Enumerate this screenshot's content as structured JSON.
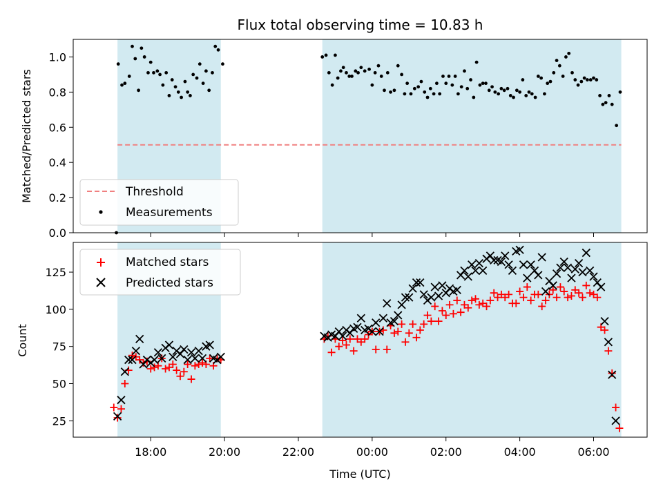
{
  "chart_data": {
    "type": "scatter",
    "title": "Flux total observing time = 10.83 h",
    "xlabel": "Time (UTC)",
    "x_ticks": [
      "18:00",
      "20:00",
      "22:00",
      "00:00",
      "02:00",
      "04:00",
      "06:00"
    ],
    "x_tick_hours": [
      18,
      20,
      22,
      24,
      26,
      28,
      30
    ],
    "xlim_hours": [
      15.9,
      31.45
    ],
    "shaded_intervals_hours": [
      [
        17.1,
        19.9
      ],
      [
        22.65,
        30.75
      ]
    ],
    "colors": {
      "shade": "#add8e6",
      "threshold": "#f08080",
      "matched": "#ff0000",
      "predicted": "#000000",
      "measurements": "#000000"
    },
    "panels": [
      {
        "id": "ratio",
        "ylabel": "Matched/Predicted stars",
        "ylim": [
          0,
          1.1
        ],
        "y_ticks": [
          0.0,
          0.2,
          0.4,
          0.6,
          0.8,
          1.0
        ],
        "legend_position": "lower-left",
        "threshold": {
          "name": "Threshold",
          "value": 0.5,
          "x_range_hours": [
            17.1,
            30.75
          ]
        },
        "measurements_name": "Measurements"
      },
      {
        "id": "count",
        "ylabel": "Count",
        "ylim": [
          14,
          145
        ],
        "y_ticks": [
          25,
          50,
          75,
          100,
          125
        ],
        "legend_position": "upper-left",
        "series_names": [
          "Matched stars",
          "Predicted stars"
        ]
      }
    ],
    "measurements": [
      [
        17.07,
        0.0
      ],
      [
        17.12,
        0.96
      ],
      [
        17.22,
        0.84
      ],
      [
        17.3,
        0.85
      ],
      [
        17.42,
        0.89
      ],
      [
        17.5,
        1.06
      ],
      [
        17.58,
        0.99
      ],
      [
        17.67,
        0.81
      ],
      [
        17.75,
        1.05
      ],
      [
        17.83,
        1.0
      ],
      [
        17.93,
        0.91
      ],
      [
        18.0,
        0.97
      ],
      [
        18.08,
        0.91
      ],
      [
        18.18,
        0.92
      ],
      [
        18.25,
        0.9
      ],
      [
        18.33,
        0.84
      ],
      [
        18.42,
        0.91
      ],
      [
        18.5,
        0.78
      ],
      [
        18.58,
        0.87
      ],
      [
        18.67,
        0.83
      ],
      [
        18.75,
        0.8
      ],
      [
        18.83,
        0.77
      ],
      [
        18.93,
        0.86
      ],
      [
        19.0,
        0.8
      ],
      [
        19.07,
        0.78
      ],
      [
        19.15,
        0.9
      ],
      [
        19.25,
        0.88
      ],
      [
        19.33,
        0.96
      ],
      [
        19.42,
        0.85
      ],
      [
        19.5,
        0.92
      ],
      [
        19.58,
        0.81
      ],
      [
        19.67,
        0.91
      ],
      [
        19.75,
        1.06
      ],
      [
        19.83,
        1.04
      ],
      [
        19.95,
        0.96
      ],
      [
        22.65,
        1.0
      ],
      [
        22.75,
        1.01
      ],
      [
        22.83,
        0.91
      ],
      [
        22.92,
        0.84
      ],
      [
        23.0,
        1.01
      ],
      [
        23.07,
        0.88
      ],
      [
        23.15,
        0.92
      ],
      [
        23.22,
        0.94
      ],
      [
        23.3,
        0.91
      ],
      [
        23.38,
        0.89
      ],
      [
        23.45,
        0.89
      ],
      [
        23.55,
        0.92
      ],
      [
        23.62,
        0.91
      ],
      [
        23.7,
        0.94
      ],
      [
        23.8,
        0.92
      ],
      [
        23.92,
        0.93
      ],
      [
        24.0,
        0.84
      ],
      [
        24.08,
        0.91
      ],
      [
        24.17,
        0.95
      ],
      [
        24.25,
        0.89
      ],
      [
        24.33,
        0.81
      ],
      [
        24.42,
        0.91
      ],
      [
        24.5,
        0.8
      ],
      [
        24.6,
        0.81
      ],
      [
        24.7,
        0.95
      ],
      [
        24.8,
        0.9
      ],
      [
        24.88,
        0.79
      ],
      [
        24.95,
        0.85
      ],
      [
        25.05,
        0.79
      ],
      [
        25.15,
        0.82
      ],
      [
        25.25,
        0.83
      ],
      [
        25.33,
        0.86
      ],
      [
        25.42,
        0.8
      ],
      [
        25.5,
        0.77
      ],
      [
        25.58,
        0.82
      ],
      [
        25.67,
        0.79
      ],
      [
        25.75,
        0.85
      ],
      [
        25.83,
        0.79
      ],
      [
        25.92,
        0.89
      ],
      [
        26.0,
        0.85
      ],
      [
        26.08,
        0.89
      ],
      [
        26.17,
        0.84
      ],
      [
        26.25,
        0.89
      ],
      [
        26.33,
        0.79
      ],
      [
        26.42,
        0.83
      ],
      [
        26.5,
        0.92
      ],
      [
        26.58,
        0.82
      ],
      [
        26.67,
        0.87
      ],
      [
        26.75,
        0.77
      ],
      [
        26.83,
        0.97
      ],
      [
        26.92,
        0.84
      ],
      [
        27.0,
        0.85
      ],
      [
        27.08,
        0.85
      ],
      [
        27.17,
        0.81
      ],
      [
        27.25,
        0.83
      ],
      [
        27.33,
        0.8
      ],
      [
        27.42,
        0.79
      ],
      [
        27.5,
        0.82
      ],
      [
        27.58,
        0.81
      ],
      [
        27.67,
        0.82
      ],
      [
        27.75,
        0.78
      ],
      [
        27.83,
        0.77
      ],
      [
        27.92,
        0.81
      ],
      [
        28.0,
        0.8
      ],
      [
        28.08,
        0.87
      ],
      [
        28.17,
        0.78
      ],
      [
        28.25,
        0.8
      ],
      [
        28.33,
        0.79
      ],
      [
        28.42,
        0.77
      ],
      [
        28.5,
        0.89
      ],
      [
        28.58,
        0.88
      ],
      [
        28.67,
        0.79
      ],
      [
        28.75,
        0.85
      ],
      [
        28.83,
        0.86
      ],
      [
        28.92,
        0.91
      ],
      [
        29.0,
        0.98
      ],
      [
        29.08,
        0.95
      ],
      [
        29.17,
        0.89
      ],
      [
        29.25,
        1.0
      ],
      [
        29.33,
        1.02
      ],
      [
        29.42,
        0.91
      ],
      [
        29.5,
        0.87
      ],
      [
        29.58,
        0.84
      ],
      [
        29.67,
        0.86
      ],
      [
        29.75,
        0.88
      ],
      [
        29.83,
        0.87
      ],
      [
        29.92,
        0.87
      ],
      [
        30.0,
        0.88
      ],
      [
        30.08,
        0.87
      ],
      [
        30.17,
        0.78
      ],
      [
        30.25,
        0.73
      ],
      [
        30.33,
        0.74
      ],
      [
        30.42,
        0.78
      ],
      [
        30.5,
        0.73
      ],
      [
        30.62,
        0.61
      ],
      [
        30.72,
        0.8
      ]
    ],
    "matched_stars": [
      [
        17.0,
        34
      ],
      [
        17.1,
        27
      ],
      [
        17.2,
        33
      ],
      [
        17.3,
        50
      ],
      [
        17.4,
        59
      ],
      [
        17.5,
        69
      ],
      [
        17.6,
        68
      ],
      [
        17.7,
        66
      ],
      [
        17.8,
        64
      ],
      [
        17.9,
        65
      ],
      [
        18.0,
        60
      ],
      [
        18.1,
        61
      ],
      [
        18.2,
        62
      ],
      [
        18.3,
        67
      ],
      [
        18.4,
        60
      ],
      [
        18.5,
        61
      ],
      [
        18.6,
        63
      ],
      [
        18.7,
        59
      ],
      [
        18.8,
        55
      ],
      [
        18.9,
        58
      ],
      [
        19.0,
        63
      ],
      [
        19.1,
        53
      ],
      [
        19.2,
        62
      ],
      [
        19.3,
        63
      ],
      [
        19.4,
        64
      ],
      [
        19.5,
        63
      ],
      [
        19.6,
        67
      ],
      [
        19.7,
        62
      ],
      [
        19.8,
        67
      ],
      [
        19.9,
        66
      ],
      [
        22.7,
        80
      ],
      [
        22.8,
        82
      ],
      [
        22.9,
        71
      ],
      [
        23.0,
        80
      ],
      [
        23.1,
        75
      ],
      [
        23.2,
        79
      ],
      [
        23.3,
        76
      ],
      [
        23.4,
        80
      ],
      [
        23.5,
        72
      ],
      [
        23.6,
        80
      ],
      [
        23.7,
        78
      ],
      [
        23.8,
        80
      ],
      [
        23.9,
        83
      ],
      [
        24.0,
        85
      ],
      [
        24.1,
        73
      ],
      [
        24.2,
        85
      ],
      [
        24.3,
        86
      ],
      [
        24.4,
        73
      ],
      [
        24.5,
        89
      ],
      [
        24.6,
        84
      ],
      [
        24.7,
        85
      ],
      [
        24.8,
        90
      ],
      [
        24.9,
        78
      ],
      [
        25.0,
        84
      ],
      [
        25.1,
        90
      ],
      [
        25.2,
        81
      ],
      [
        25.3,
        86
      ],
      [
        25.4,
        90
      ],
      [
        25.5,
        96
      ],
      [
        25.6,
        92
      ],
      [
        25.7,
        102
      ],
      [
        25.8,
        92
      ],
      [
        25.9,
        99
      ],
      [
        26.0,
        96
      ],
      [
        26.1,
        103
      ],
      [
        26.2,
        97
      ],
      [
        26.3,
        106
      ],
      [
        26.4,
        98
      ],
      [
        26.5,
        103
      ],
      [
        26.6,
        101
      ],
      [
        26.7,
        106
      ],
      [
        26.8,
        107
      ],
      [
        26.9,
        103
      ],
      [
        27.0,
        104
      ],
      [
        27.1,
        102
      ],
      [
        27.2,
        106
      ],
      [
        27.3,
        111
      ],
      [
        27.4,
        108
      ],
      [
        27.5,
        110
      ],
      [
        27.6,
        108
      ],
      [
        27.7,
        110
      ],
      [
        27.8,
        104
      ],
      [
        27.9,
        104
      ],
      [
        28.0,
        112
      ],
      [
        28.1,
        108
      ],
      [
        28.2,
        115
      ],
      [
        28.3,
        106
      ],
      [
        28.4,
        110
      ],
      [
        28.5,
        110
      ],
      [
        28.6,
        102
      ],
      [
        28.7,
        106
      ],
      [
        28.8,
        110
      ],
      [
        28.9,
        113
      ],
      [
        29.0,
        108
      ],
      [
        29.1,
        115
      ],
      [
        29.2,
        112
      ],
      [
        29.3,
        108
      ],
      [
        29.4,
        109
      ],
      [
        29.5,
        113
      ],
      [
        29.6,
        111
      ],
      [
        29.7,
        108
      ],
      [
        29.8,
        116
      ],
      [
        29.9,
        111
      ],
      [
        30.0,
        110
      ],
      [
        30.1,
        108
      ],
      [
        30.2,
        88
      ],
      [
        30.3,
        86
      ],
      [
        30.4,
        72
      ],
      [
        30.5,
        57
      ],
      [
        30.6,
        34
      ],
      [
        30.7,
        20
      ]
    ],
    "predicted_stars": [
      [
        17.1,
        28
      ],
      [
        17.2,
        39
      ],
      [
        17.3,
        58
      ],
      [
        17.4,
        66
      ],
      [
        17.5,
        66
      ],
      [
        17.6,
        72
      ],
      [
        17.7,
        80
      ],
      [
        17.8,
        63
      ],
      [
        17.9,
        66
      ],
      [
        18.0,
        64
      ],
      [
        18.1,
        66
      ],
      [
        18.2,
        71
      ],
      [
        18.3,
        67
      ],
      [
        18.4,
        74
      ],
      [
        18.5,
        76
      ],
      [
        18.6,
        68
      ],
      [
        18.7,
        72
      ],
      [
        18.8,
        70
      ],
      [
        18.9,
        73
      ],
      [
        19.0,
        66
      ],
      [
        19.1,
        71
      ],
      [
        19.2,
        67
      ],
      [
        19.3,
        72
      ],
      [
        19.4,
        67
      ],
      [
        19.5,
        75
      ],
      [
        19.6,
        76
      ],
      [
        19.7,
        67
      ],
      [
        19.8,
        66
      ],
      [
        19.9,
        68
      ],
      [
        22.7,
        82
      ],
      [
        22.8,
        81
      ],
      [
        22.9,
        83
      ],
      [
        23.0,
        82
      ],
      [
        23.1,
        85
      ],
      [
        23.2,
        82
      ],
      [
        23.3,
        86
      ],
      [
        23.4,
        84
      ],
      [
        23.5,
        87
      ],
      [
        23.6,
        88
      ],
      [
        23.7,
        94
      ],
      [
        23.8,
        86
      ],
      [
        23.9,
        87
      ],
      [
        24.0,
        85
      ],
      [
        24.1,
        91
      ],
      [
        24.2,
        85
      ],
      [
        24.3,
        94
      ],
      [
        24.4,
        104
      ],
      [
        24.5,
        91
      ],
      [
        24.6,
        92
      ],
      [
        24.7,
        96
      ],
      [
        24.8,
        103
      ],
      [
        24.9,
        108
      ],
      [
        25.0,
        108
      ],
      [
        25.1,
        114
      ],
      [
        25.2,
        118
      ],
      [
        25.3,
        118
      ],
      [
        25.4,
        110
      ],
      [
        25.5,
        106
      ],
      [
        25.6,
        108
      ],
      [
        25.7,
        115
      ],
      [
        25.8,
        109
      ],
      [
        25.9,
        116
      ],
      [
        26.0,
        111
      ],
      [
        26.1,
        114
      ],
      [
        26.2,
        112
      ],
      [
        26.3,
        113
      ],
      [
        26.4,
        123
      ],
      [
        26.5,
        126
      ],
      [
        26.6,
        122
      ],
      [
        26.7,
        130
      ],
      [
        26.8,
        126
      ],
      [
        26.9,
        131
      ],
      [
        27.0,
        126
      ],
      [
        27.1,
        134
      ],
      [
        27.2,
        136
      ],
      [
        27.3,
        133
      ],
      [
        27.4,
        133
      ],
      [
        27.5,
        132
      ],
      [
        27.6,
        136
      ],
      [
        27.7,
        130
      ],
      [
        27.8,
        126
      ],
      [
        27.9,
        139
      ],
      [
        28.0,
        140
      ],
      [
        28.1,
        130
      ],
      [
        28.2,
        121
      ],
      [
        28.3,
        130
      ],
      [
        28.4,
        126
      ],
      [
        28.5,
        123
      ],
      [
        28.6,
        135
      ],
      [
        28.7,
        112
      ],
      [
        28.8,
        119
      ],
      [
        28.9,
        116
      ],
      [
        29.0,
        124
      ],
      [
        29.1,
        128
      ],
      [
        29.2,
        132
      ],
      [
        29.3,
        128
      ],
      [
        29.4,
        121
      ],
      [
        29.5,
        127
      ],
      [
        29.6,
        131
      ],
      [
        29.7,
        125
      ],
      [
        29.8,
        138
      ],
      [
        29.9,
        126
      ],
      [
        30.0,
        122
      ],
      [
        30.1,
        118
      ],
      [
        30.2,
        115
      ],
      [
        30.3,
        92
      ],
      [
        30.4,
        78
      ],
      [
        30.5,
        56
      ],
      [
        30.6,
        25
      ]
    ]
  }
}
